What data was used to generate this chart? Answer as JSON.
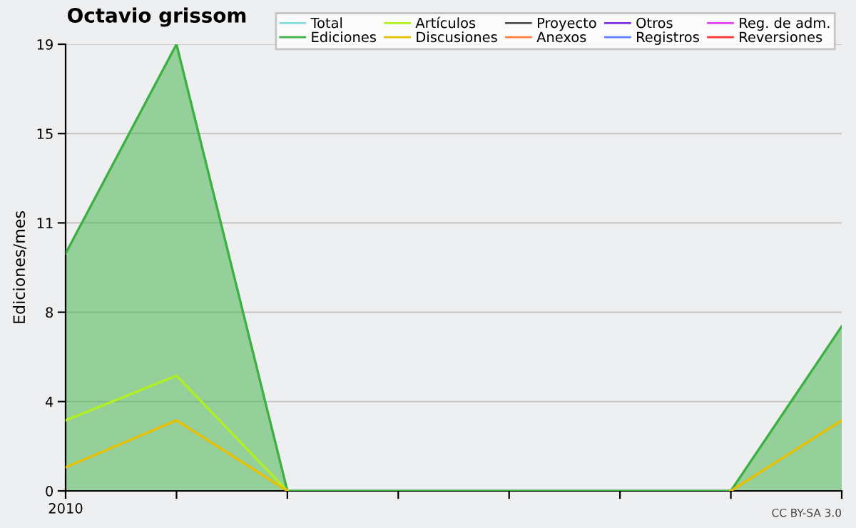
{
  "chart_data": {
    "type": "line",
    "title": "Octavio grissom",
    "ylabel": "Ediciones/mes",
    "categories": [
      "2010",
      null,
      null,
      null,
      null,
      null,
      null,
      null
    ],
    "series": [
      {
        "name": "Total",
        "color": "#80e0e0",
        "values": [
          null,
          null,
          null,
          null,
          null,
          null,
          null,
          null
        ]
      },
      {
        "name": "Ediciones",
        "type": "area",
        "color": "#3cb043",
        "values": [
          10.1,
          19,
          0,
          0,
          0,
          0,
          0,
          7.0
        ]
      },
      {
        "name": "Artículos",
        "color": "#b0f020",
        "values": [
          3.0,
          4.9,
          0,
          null,
          null,
          null,
          null,
          null
        ]
      },
      {
        "name": "Discusiones",
        "color": "#e8c000",
        "values": [
          1.0,
          3.0,
          0,
          null,
          null,
          null,
          0,
          3.0
        ]
      },
      {
        "name": "Proyecto",
        "color": "#505050",
        "values": [
          null,
          null,
          null,
          null,
          null,
          null,
          null,
          null
        ]
      },
      {
        "name": "Anexos",
        "color": "#ff8040",
        "values": [
          null,
          null,
          null,
          null,
          null,
          null,
          null,
          null
        ]
      },
      {
        "name": "Otros",
        "color": "#8030e0",
        "values": [
          null,
          null,
          null,
          null,
          null,
          null,
          null,
          null
        ]
      },
      {
        "name": "Registros",
        "color": "#6080ff",
        "values": [
          null,
          null,
          null,
          null,
          null,
          null,
          null,
          null
        ]
      },
      {
        "name": "Reg. de adm.",
        "color": "#e040f0",
        "values": [
          null,
          null,
          null,
          null,
          null,
          null,
          null,
          null
        ]
      },
      {
        "name": "Reversiones",
        "color": "#ff3030",
        "values": [
          null,
          null,
          null,
          null,
          null,
          null,
          null,
          null
        ]
      }
    ],
    "ylim": [
      0,
      19
    ],
    "yticks": [
      0,
      {
        "value": 3.8,
        "label": "4"
      },
      {
        "value": 7.6,
        "label": "8"
      },
      {
        "value": 11.4,
        "label": "11"
      },
      {
        "value": 15.2,
        "label": "15"
      },
      19
    ],
    "grid": "y",
    "legend": "top right",
    "annotations": [
      "CC BY-SA 3.0"
    ]
  }
}
